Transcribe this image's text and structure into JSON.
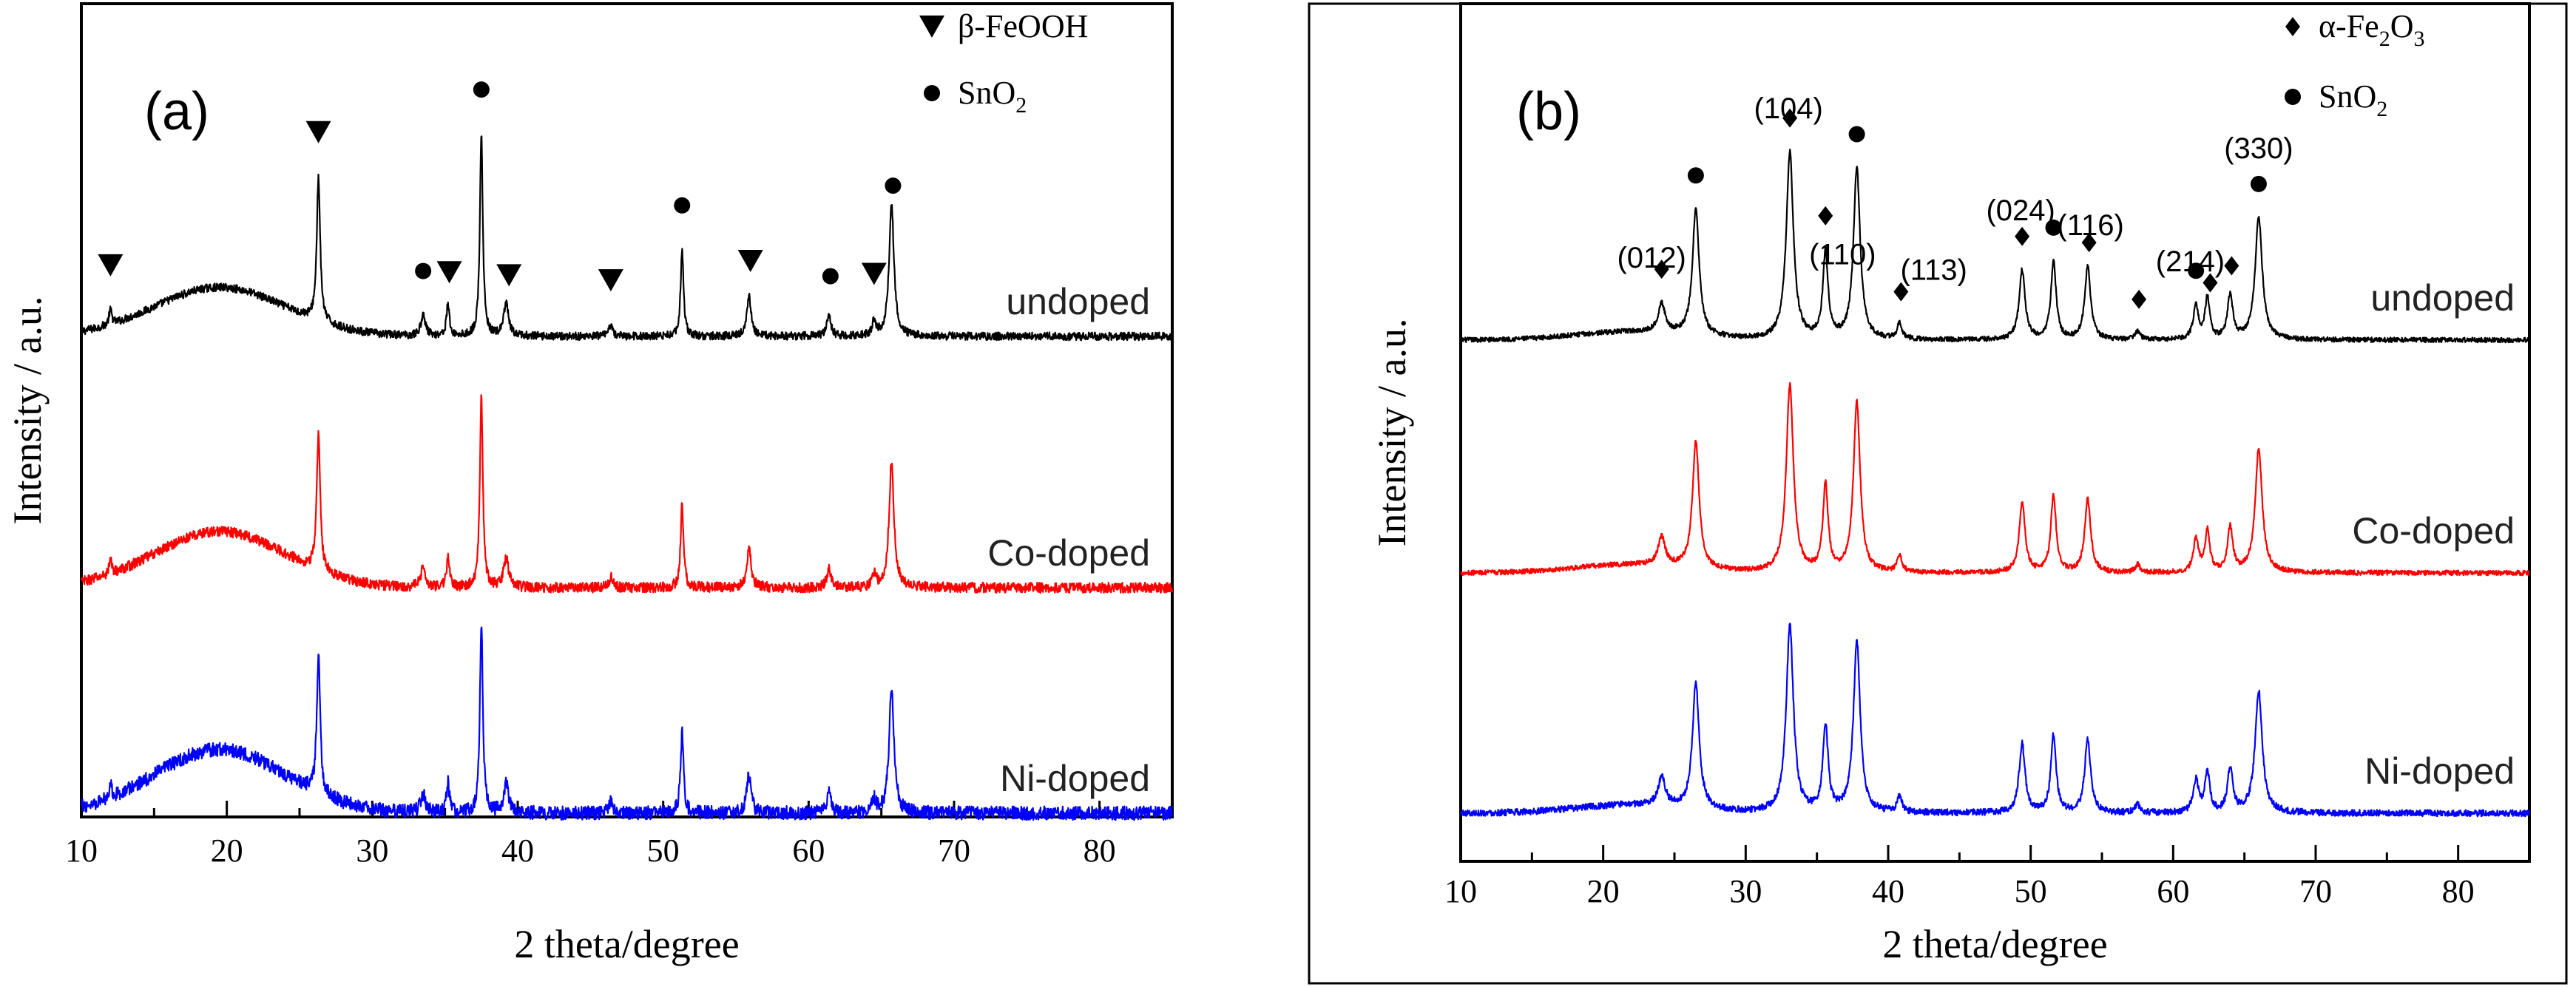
{
  "chart_data": [
    {
      "panel_label": "(a)",
      "type": "line",
      "xlabel": "2 theta/degree",
      "ylabel": "Intensity / a.u.",
      "xlim": [
        10,
        85
      ],
      "xticks": [
        10,
        20,
        30,
        40,
        50,
        60,
        70,
        80
      ],
      "grid": false,
      "legend": {
        "placement": "top-right",
        "entries": [
          {
            "marker": "triangle-down",
            "text": "β-FeOOH"
          },
          {
            "marker": "circle",
            "text": "SnO",
            "subscript": "2"
          }
        ]
      },
      "hump": {
        "center": 19.5,
        "width": 4.5,
        "height": 0.85
      },
      "series": [
        {
          "name": "undoped",
          "color": "#000000",
          "baseline": 0.0,
          "noise": 0.07,
          "hump_scale": 1.0,
          "peak_scale": 1.0
        },
        {
          "name": "Co-doped",
          "color": "#ff0000",
          "baseline": 0.0,
          "noise": 0.09,
          "hump_scale": 1.15,
          "peak_scale": 0.95
        },
        {
          "name": "Ni-doped",
          "color": "#0000ff",
          "baseline": 0.0,
          "noise": 0.12,
          "hump_scale": 1.3,
          "peak_scale": 0.95
        }
      ],
      "peaks": [
        {
          "x": 12.0,
          "h": 0.25,
          "w": 0.12
        },
        {
          "x": 26.3,
          "h": 2.5,
          "w": 0.14
        },
        {
          "x": 33.5,
          "h": 0.35,
          "w": 0.2
        },
        {
          "x": 35.2,
          "h": 0.55,
          "w": 0.12
        },
        {
          "x": 37.5,
          "h": 3.5,
          "w": 0.12
        },
        {
          "x": 39.2,
          "h": 0.55,
          "w": 0.2
        },
        {
          "x": 46.4,
          "h": 0.2,
          "w": 0.15
        },
        {
          "x": 51.3,
          "h": 1.5,
          "w": 0.12
        },
        {
          "x": 55.9,
          "h": 0.7,
          "w": 0.18
        },
        {
          "x": 61.4,
          "h": 0.35,
          "w": 0.18
        },
        {
          "x": 64.5,
          "h": 0.25,
          "w": 0.15
        },
        {
          "x": 65.7,
          "h": 2.3,
          "w": 0.2
        }
      ],
      "markers": [
        {
          "x": 12.0,
          "type": "triangle-down"
        },
        {
          "x": 26.3,
          "type": "triangle-down"
        },
        {
          "x": 33.5,
          "type": "circle"
        },
        {
          "x": 35.3,
          "type": "triangle-down"
        },
        {
          "x": 37.5,
          "type": "circle"
        },
        {
          "x": 39.4,
          "type": "triangle-down"
        },
        {
          "x": 46.4,
          "type": "triangle-down"
        },
        {
          "x": 51.3,
          "type": "circle"
        },
        {
          "x": 56.0,
          "type": "triangle-down"
        },
        {
          "x": 61.5,
          "type": "circle"
        },
        {
          "x": 64.5,
          "type": "triangle-down"
        },
        {
          "x": 65.8,
          "type": "circle"
        }
      ],
      "reflection_labels": []
    },
    {
      "panel_label": "(b)",
      "type": "line",
      "xlabel": "2 theta/degree",
      "ylabel": "Intensity / a.u.",
      "xlim": [
        10,
        85
      ],
      "xticks": [
        10,
        20,
        30,
        40,
        50,
        60,
        70,
        80
      ],
      "grid": false,
      "legend": {
        "placement": "top-right",
        "entries": [
          {
            "marker": "diamond",
            "text": "α-Fe",
            "sub1": "2",
            "mid": "O",
            "sub2": "3"
          },
          {
            "marker": "circle",
            "text": "SnO",
            "subscript": "2"
          }
        ]
      },
      "hump": {
        "center": 22.0,
        "width": 4.0,
        "height": 0.1
      },
      "series": [
        {
          "name": "undoped",
          "color": "#000000",
          "baseline": 0.0,
          "noise": 0.03,
          "hump_scale": 1.0,
          "peak_scale": 1.0
        },
        {
          "name": "Co-doped",
          "color": "#ff0000",
          "baseline": 0.0,
          "noise": 0.03,
          "hump_scale": 1.0,
          "peak_scale": 1.0
        },
        {
          "name": "Ni-doped",
          "color": "#0000ff",
          "baseline": 0.0,
          "noise": 0.04,
          "hump_scale": 1.0,
          "peak_scale": 1.0
        }
      ],
      "peaks": [
        {
          "x": 24.1,
          "h": 0.35,
          "w": 0.3
        },
        {
          "x": 26.5,
          "h": 1.55,
          "w": 0.28
        },
        {
          "x": 33.1,
          "h": 2.3,
          "w": 0.3
        },
        {
          "x": 35.6,
          "h": 1.05,
          "w": 0.22
        },
        {
          "x": 37.8,
          "h": 2.1,
          "w": 0.28
        },
        {
          "x": 40.8,
          "h": 0.2,
          "w": 0.2
        },
        {
          "x": 49.4,
          "h": 0.85,
          "w": 0.25
        },
        {
          "x": 51.6,
          "h": 0.95,
          "w": 0.22
        },
        {
          "x": 54.0,
          "h": 0.9,
          "w": 0.25
        },
        {
          "x": 57.5,
          "h": 0.1,
          "w": 0.2
        },
        {
          "x": 61.6,
          "h": 0.4,
          "w": 0.22
        },
        {
          "x": 62.4,
          "h": 0.5,
          "w": 0.2
        },
        {
          "x": 64.0,
          "h": 0.55,
          "w": 0.22
        },
        {
          "x": 66.0,
          "h": 1.5,
          "w": 0.3
        }
      ],
      "markers": [
        {
          "x": 24.1,
          "type": "diamond"
        },
        {
          "x": 26.5,
          "type": "circle"
        },
        {
          "x": 33.1,
          "type": "diamond"
        },
        {
          "x": 35.6,
          "type": "diamond"
        },
        {
          "x": 37.8,
          "type": "circle"
        },
        {
          "x": 40.9,
          "type": "diamond"
        },
        {
          "x": 49.4,
          "type": "diamond"
        },
        {
          "x": 51.6,
          "type": "circle"
        },
        {
          "x": 54.1,
          "type": "diamond"
        },
        {
          "x": 57.6,
          "type": "diamond"
        },
        {
          "x": 61.6,
          "type": "circle"
        },
        {
          "x": 62.6,
          "type": "diamond"
        },
        {
          "x": 64.1,
          "type": "diamond"
        },
        {
          "x": 66.0,
          "type": "circle"
        }
      ],
      "reflection_labels": [
        {
          "text": "(012)",
          "x": 23.4
        },
        {
          "text": "(104)",
          "x": 33.0
        },
        {
          "text": "(110)",
          "x": 36.8
        },
        {
          "text": "(113)",
          "x": 43.2
        },
        {
          "text": "(024)",
          "x": 49.3
        },
        {
          "text": "(116)",
          "x": 54.2
        },
        {
          "text": "(214)",
          "x": 61.2
        },
        {
          "text": "(330)",
          "x": 66.0
        }
      ]
    }
  ]
}
